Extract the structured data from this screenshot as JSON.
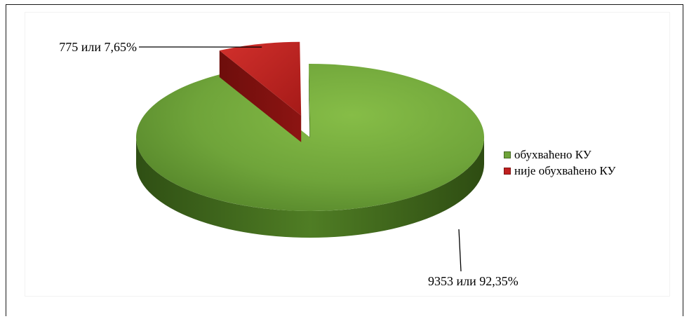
{
  "chart_data": {
    "type": "pie",
    "title": "",
    "three_d": true,
    "legend_position": "right",
    "categories": [
      "обухваћено КУ",
      "није обухваћено КУ"
    ],
    "values": [
      9353,
      775
    ],
    "percents": [
      92.35,
      7.65
    ],
    "colors": [
      "#6fa43a",
      "#c0201f"
    ],
    "data_labels": [
      "9353 или 92,35%",
      "775 или 7,65%"
    ],
    "exploded": [
      false,
      true
    ]
  }
}
